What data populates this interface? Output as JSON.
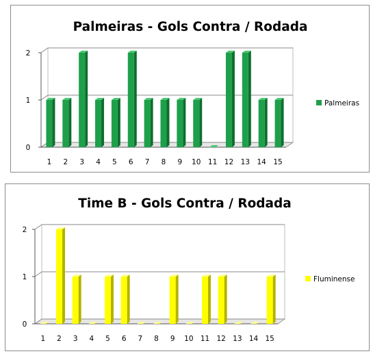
{
  "chart_data": [
    {
      "type": "bar",
      "title": "Palmeiras - Gols Contra / Rodada",
      "categories": [
        "1",
        "2",
        "3",
        "4",
        "5",
        "6",
        "7",
        "8",
        "9",
        "10",
        "11",
        "12",
        "13",
        "14",
        "15"
      ],
      "series": [
        {
          "name": "Palmeiras",
          "values": [
            1,
            1,
            2,
            1,
            1,
            2,
            1,
            1,
            1,
            1,
            0,
            2,
            2,
            1,
            1
          ]
        }
      ],
      "xlabel": "",
      "ylabel": "",
      "ylim": [
        0,
        2
      ],
      "yticks": [
        "0",
        "1",
        "2"
      ],
      "grid": true,
      "legend": "right",
      "style": "3d",
      "colors": {
        "face": "#1ea04b",
        "side": "#0f6e2e",
        "top": "#4cc874"
      }
    },
    {
      "type": "bar",
      "title": "Time B - Gols Contra / Rodada",
      "categories": [
        "1",
        "2",
        "3",
        "4",
        "5",
        "6",
        "7",
        "8",
        "9",
        "10",
        "11",
        "12",
        "13",
        "14",
        "15"
      ],
      "series": [
        {
          "name": "Fluminense",
          "values": [
            0,
            2,
            1,
            0,
            1,
            1,
            0,
            0,
            1,
            0,
            1,
            1,
            0,
            0,
            1
          ]
        }
      ],
      "xlabel": "",
      "ylabel": "",
      "ylim": [
        0,
        2
      ],
      "yticks": [
        "0",
        "1",
        "2"
      ],
      "grid": true,
      "legend": "right",
      "style": "3d",
      "colors": {
        "face": "#ffff00",
        "side": "#b3b300",
        "top": "#ffff8a"
      }
    }
  ]
}
